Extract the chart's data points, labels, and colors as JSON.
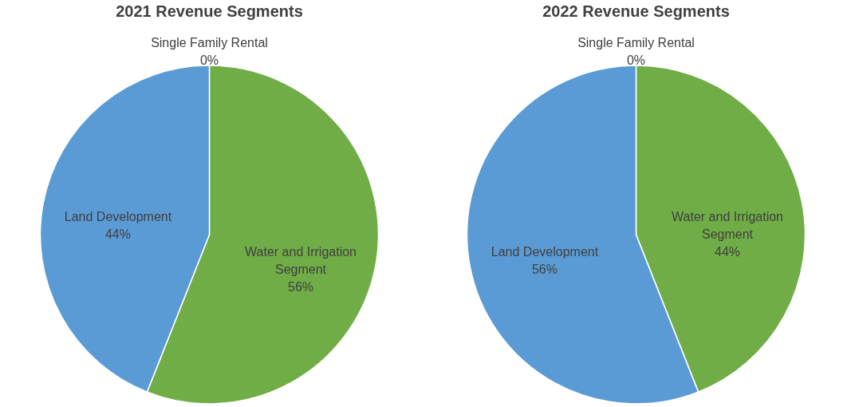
{
  "chart_data": [
    {
      "type": "pie",
      "title": "2021 Revenue Segments",
      "categories": [
        "Single Family Rental",
        "Water and Irrigation Segment",
        "Land Development"
      ],
      "values": [
        0,
        56,
        44
      ],
      "value_labels": [
        "0%",
        "56%",
        "44%"
      ],
      "colors": [
        "#ffc000",
        "#70ad47",
        "#5b9bd5"
      ],
      "legend": false
    },
    {
      "type": "pie",
      "title": "2022 Revenue Segments",
      "categories": [
        "Single Family Rental",
        "Water and Irrigation Segment",
        "Land Development"
      ],
      "values": [
        0,
        44,
        56
      ],
      "value_labels": [
        "0%",
        "44%",
        "56%"
      ],
      "colors": [
        "#ffc000",
        "#70ad47",
        "#5b9bd5"
      ],
      "legend": false
    }
  ]
}
